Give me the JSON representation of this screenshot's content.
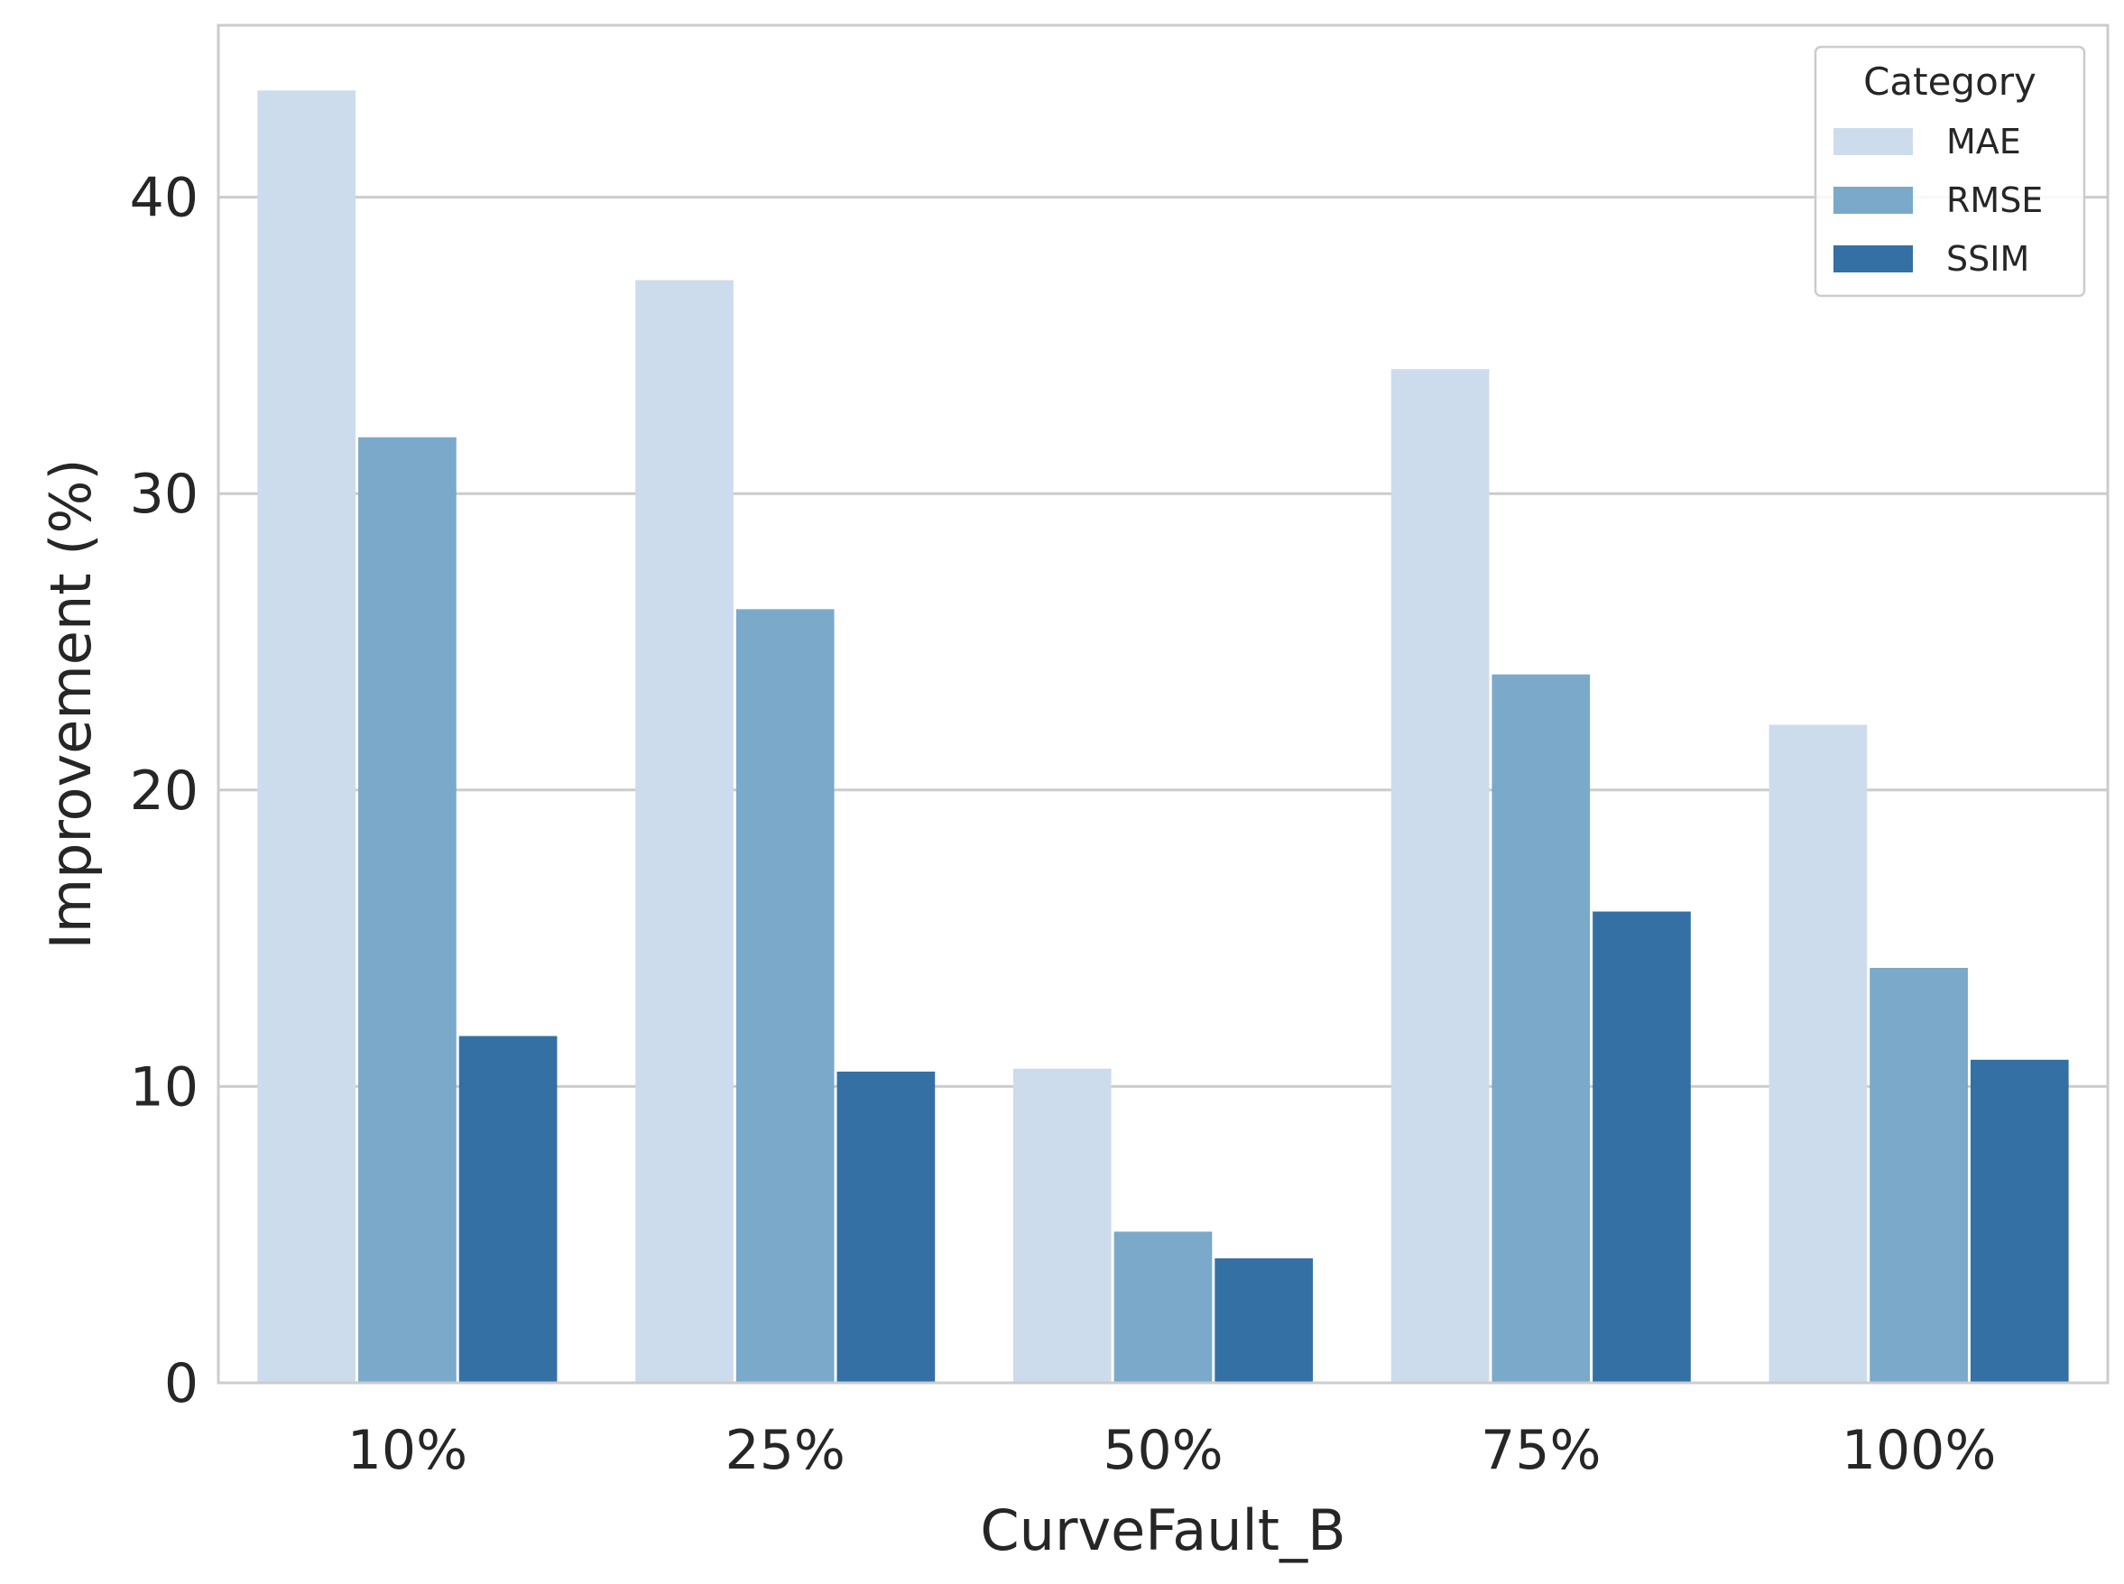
{
  "chart_data": {
    "type": "bar",
    "categories": [
      "10%",
      "25%",
      "50%",
      "75%",
      "100%"
    ],
    "series": [
      {
        "name": "MAE",
        "color": "#cddcec",
        "values": [
          43.6,
          37.2,
          10.6,
          34.2,
          22.2
        ]
      },
      {
        "name": "RMSE",
        "color": "#7aa9c9",
        "values": [
          31.9,
          26.1,
          5.1,
          23.9,
          14.0
        ]
      },
      {
        "name": "SSIM",
        "color": "#3470a3",
        "values": [
          11.7,
          10.5,
          4.2,
          15.9,
          10.9
        ]
      }
    ],
    "xlabel": "CurveFault_B",
    "ylabel": "Improvement (%)",
    "ylim": [
      0,
      45.8
    ],
    "yticks": [
      0,
      10,
      20,
      30,
      40
    ],
    "grid": "horizontal",
    "legend": {
      "title": "Category",
      "position": "top-right"
    }
  }
}
